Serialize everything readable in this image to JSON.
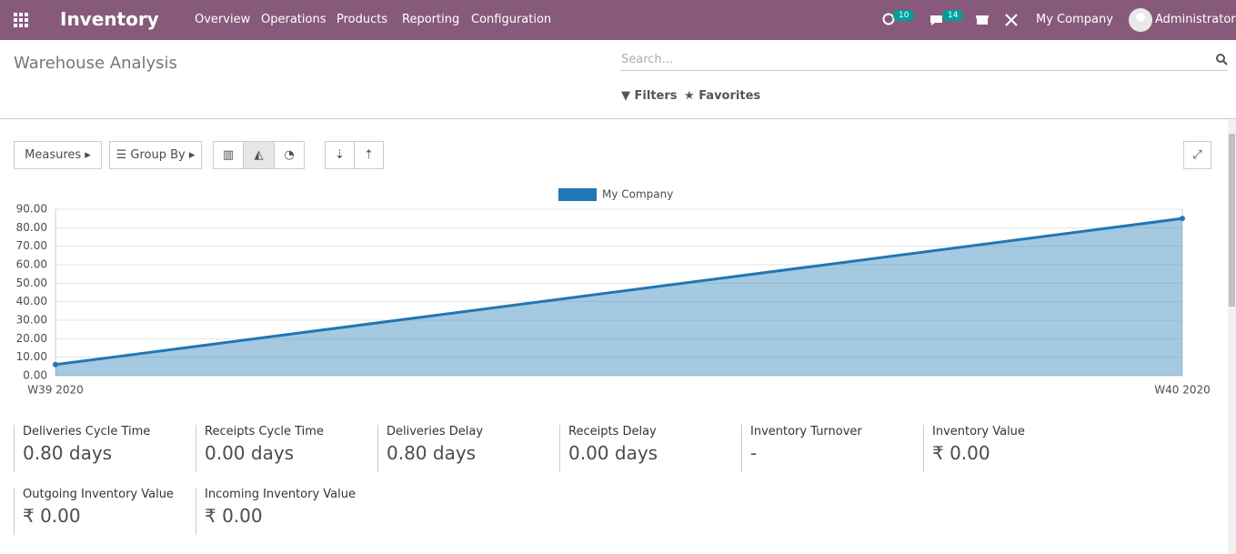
{
  "navbar": {
    "app": "Inventory",
    "menu": [
      "Overview",
      "Operations",
      "Products",
      "Reporting",
      "Configuration"
    ],
    "activity_count": 10,
    "message_count": 14,
    "company": "My Company",
    "user": "Administrator"
  },
  "control_panel": {
    "title": "Warehouse Analysis",
    "search_placeholder": "Search...",
    "filters": "Filters",
    "favorites": "Favorites",
    "measures": "Measures",
    "group_by": "Group By"
  },
  "chart_data": {
    "type": "area",
    "categories": [
      "W39 2020",
      "W40 2020"
    ],
    "series": [
      {
        "name": "My Company",
        "color": "#1f77b4",
        "values": [
          6,
          85
        ]
      }
    ],
    "ylim": [
      0,
      90
    ],
    "yticks": [
      {
        "value": 0,
        "label": "0.00"
      },
      {
        "value": 10,
        "label": "10.00"
      },
      {
        "value": 20,
        "label": "20.00"
      },
      {
        "value": 30,
        "label": "30.00"
      },
      {
        "value": 40,
        "label": "40.00"
      },
      {
        "value": 50,
        "label": "50.00"
      },
      {
        "value": 60,
        "label": "60.00"
      },
      {
        "value": 70,
        "label": "70.00"
      },
      {
        "value": 80,
        "label": "80.00"
      },
      {
        "value": 90,
        "label": "90.00"
      }
    ],
    "grid": true
  },
  "kpis": [
    {
      "label": "Deliveries Cycle Time",
      "value": "0.80 days"
    },
    {
      "label": "Receipts Cycle Time",
      "value": "0.00 days"
    },
    {
      "label": "Deliveries Delay",
      "value": "0.80 days"
    },
    {
      "label": "Receipts Delay",
      "value": "0.00 days"
    },
    {
      "label": "Inventory Turnover",
      "value": "-"
    },
    {
      "label": "Inventory Value",
      "value": "₹ 0.00"
    },
    {
      "label": "Outgoing Inventory Value",
      "value": "₹ 0.00"
    },
    {
      "label": "Incoming Inventory Value",
      "value": "₹ 0.00"
    }
  ]
}
